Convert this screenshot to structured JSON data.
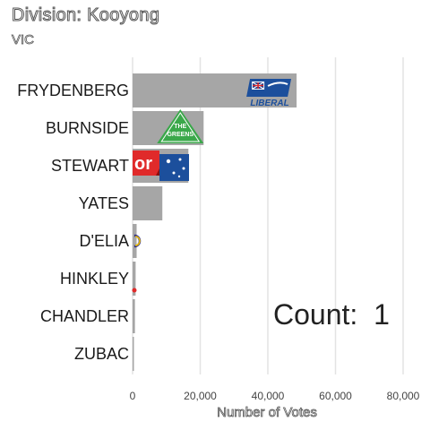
{
  "title": "Division: Kooyong",
  "subtitle": "VIC",
  "count_prefix": "Count:",
  "count_value": "1",
  "colors": {
    "bar": "#a6a6a6",
    "grid": "#e3e3e3",
    "liberal_blue": "#1c4f9c",
    "greens_green": "#3aa84a",
    "labor_red": "#e02a2a"
  },
  "chart_data": {
    "type": "bar",
    "orientation": "horizontal",
    "categories": [
      "FRYDENBERG",
      "BURNSIDE",
      "STEWART",
      "YATES",
      "D'ELIA",
      "HINKLEY",
      "CHANDLER",
      "ZUBAC"
    ],
    "values": [
      48500,
      21000,
      16500,
      8800,
      1200,
      900,
      700,
      400
    ],
    "xlabel": "Number of Votes",
    "ylabel": "",
    "xlim": [
      0,
      80000
    ],
    "ticks": [
      0,
      20000,
      40000,
      60000,
      80000
    ],
    "tick_labels": [
      "0",
      "20,000",
      "40,000",
      "60,000",
      "80,000"
    ],
    "grid": true,
    "logos": [
      {
        "category": "FRYDENBERG",
        "icon": "liberal-logo",
        "text": "LIBERAL"
      },
      {
        "category": "BURNSIDE",
        "icon": "greens-logo",
        "text_line1": "THE",
        "text_line2": "GREENS"
      },
      {
        "category": "STEWART",
        "icon": "labor-logo",
        "text": "or"
      }
    ]
  }
}
